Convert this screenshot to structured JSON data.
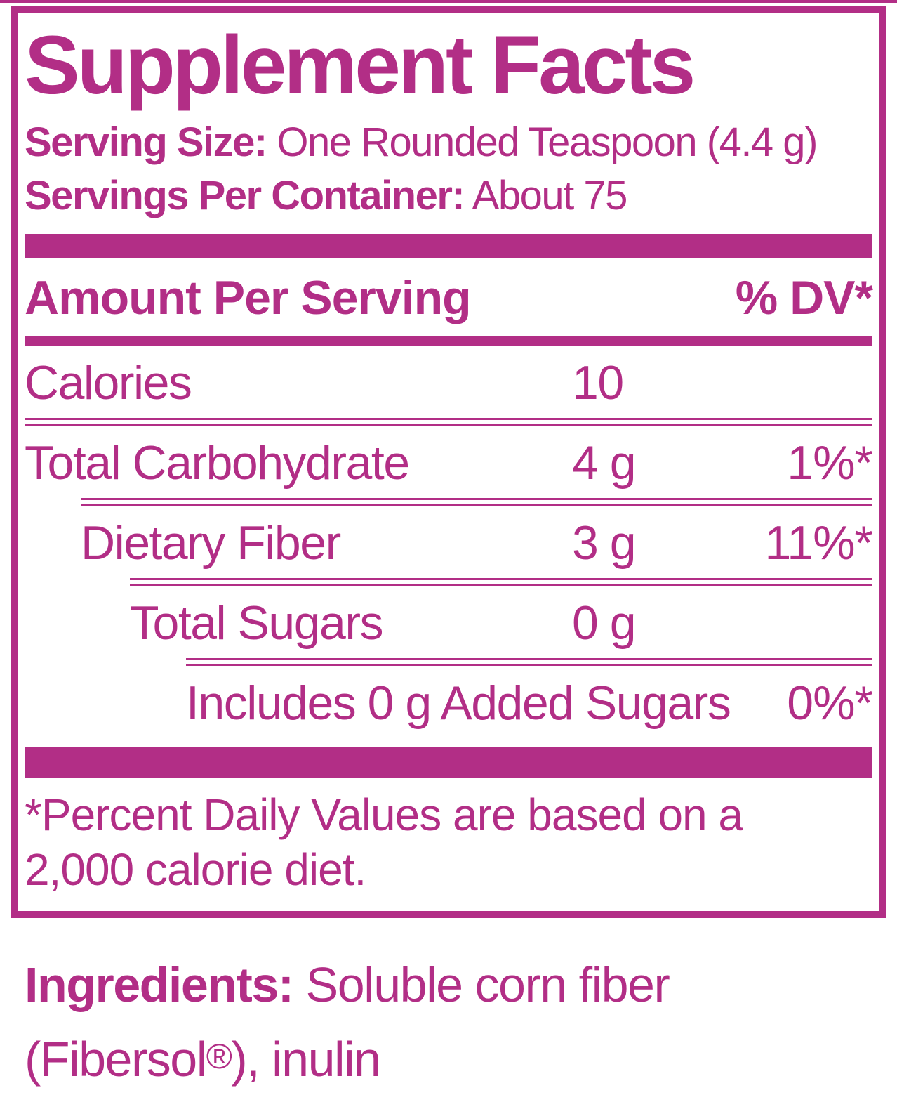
{
  "colors": {
    "accent_magenta": "#b22e86",
    "background": "#ffffff"
  },
  "panel": {
    "title": "Supplement Facts",
    "serving_size": {
      "label": "Serving Size:",
      "value": "One Rounded Teaspoon (4.4 g)"
    },
    "servings_per_container": {
      "label": "Servings Per Container:",
      "value": "About 75"
    },
    "header": {
      "amount_per_serving": "Amount Per Serving",
      "percent_dv": "% DV*"
    },
    "rows": [
      {
        "name": "Calories",
        "amount": "10",
        "dv": ""
      },
      {
        "name": "Total Carbohydrate",
        "amount": "4 g",
        "dv": "1%*"
      },
      {
        "name": "Dietary Fiber",
        "amount": "3 g",
        "dv": "11%*"
      },
      {
        "name": "Total Sugars",
        "amount": "0 g",
        "dv": ""
      },
      {
        "name": "Includes 0 g Added Sugars",
        "amount": "",
        "dv": "0%*"
      }
    ],
    "footnote": {
      "line1": "*Percent Daily Values are based on a",
      "line2": "2,000 calorie diet."
    }
  },
  "ingredients": {
    "label": "Ingredients:",
    "line1_value": "Soluble corn fiber",
    "line2": {
      "pre": "(Fibersol",
      "regmark": "®",
      "post": "), inulin"
    }
  }
}
